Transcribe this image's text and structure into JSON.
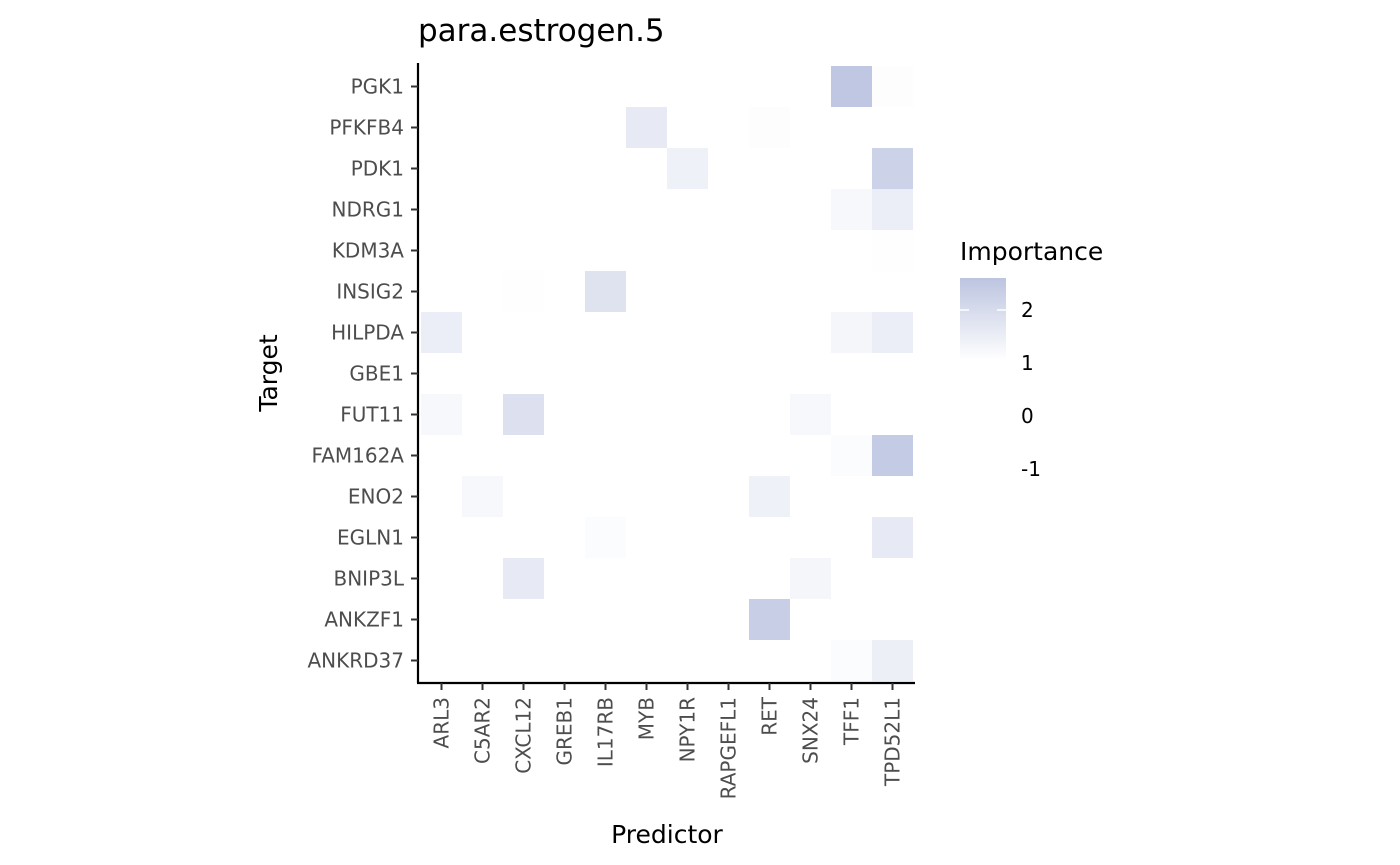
{
  "chart_data": {
    "type": "heatmap",
    "title": "para.estrogen.5",
    "xlabel": "Predictor",
    "ylabel": "Target",
    "x_categories": [
      "ARL3",
      "C5AR2",
      "CXCL12",
      "GREB1",
      "IL17RB",
      "MYB",
      "NPY1R",
      "RAPGEFL1",
      "RET",
      "SNX24",
      "TFF1",
      "TPD52L1"
    ],
    "y_categories": [
      "PGK1",
      "PFKFB4",
      "PDK1",
      "NDRG1",
      "KDM3A",
      "INSIG2",
      "HILPDA",
      "GBE1",
      "FUT11",
      "FAM162A",
      "ENO2",
      "EGLN1",
      "BNIP3L",
      "ANKZF1",
      "ANKRD37"
    ],
    "cells": [
      {
        "x": "TFF1",
        "y": "PGK1",
        "value": 2.6
      },
      {
        "x": "TPD52L1",
        "y": "PGK1",
        "value": 1.05
      },
      {
        "x": "MYB",
        "y": "PFKFB4",
        "value": 1.6
      },
      {
        "x": "RET",
        "y": "PFKFB4",
        "value": 1.05
      },
      {
        "x": "NPY1R",
        "y": "PDK1",
        "value": 1.4
      },
      {
        "x": "TPD52L1",
        "y": "PDK1",
        "value": 2.3
      },
      {
        "x": "TFF1",
        "y": "NDRG1",
        "value": 1.2
      },
      {
        "x": "TPD52L1",
        "y": "NDRG1",
        "value": 1.5
      },
      {
        "x": "TPD52L1",
        "y": "KDM3A",
        "value": 1.03
      },
      {
        "x": "CXCL12",
        "y": "INSIG2",
        "value": 1.03
      },
      {
        "x": "IL17RB",
        "y": "INSIG2",
        "value": 1.8
      },
      {
        "x": "ARL3",
        "y": "HILPDA",
        "value": 1.5
      },
      {
        "x": "TFF1",
        "y": "HILPDA",
        "value": 1.25
      },
      {
        "x": "TPD52L1",
        "y": "HILPDA",
        "value": 1.5
      },
      {
        "x": "ARL3",
        "y": "FUT11",
        "value": 1.2
      },
      {
        "x": "CXCL12",
        "y": "FUT11",
        "value": 1.9
      },
      {
        "x": "SNX24",
        "y": "FUT11",
        "value": 1.2
      },
      {
        "x": "TFF1",
        "y": "FAM162A",
        "value": 1.1
      },
      {
        "x": "TPD52L1",
        "y": "FAM162A",
        "value": 2.5
      },
      {
        "x": "C5AR2",
        "y": "ENO2",
        "value": 1.2
      },
      {
        "x": "RET",
        "y": "ENO2",
        "value": 1.4
      },
      {
        "x": "IL17RB",
        "y": "EGLN1",
        "value": 1.1
      },
      {
        "x": "TPD52L1",
        "y": "EGLN1",
        "value": 1.6
      },
      {
        "x": "CXCL12",
        "y": "BNIP3L",
        "value": 1.6
      },
      {
        "x": "SNX24",
        "y": "BNIP3L",
        "value": 1.25
      },
      {
        "x": "RET",
        "y": "ANKZF1",
        "value": 2.4
      },
      {
        "x": "TFF1",
        "y": "ANKRD37",
        "value": 1.1
      },
      {
        "x": "TPD52L1",
        "y": "ANKRD37",
        "value": 1.45
      }
    ],
    "legend": {
      "title": "Importance",
      "labels": [
        "2",
        "1",
        "0",
        "-1"
      ],
      "values": [
        2,
        1,
        0,
        -1
      ],
      "placement": "right",
      "color_low": "#ffffff",
      "color_high": "#bcc4e0",
      "range": [
        1,
        2.7
      ]
    },
    "grid": false
  }
}
